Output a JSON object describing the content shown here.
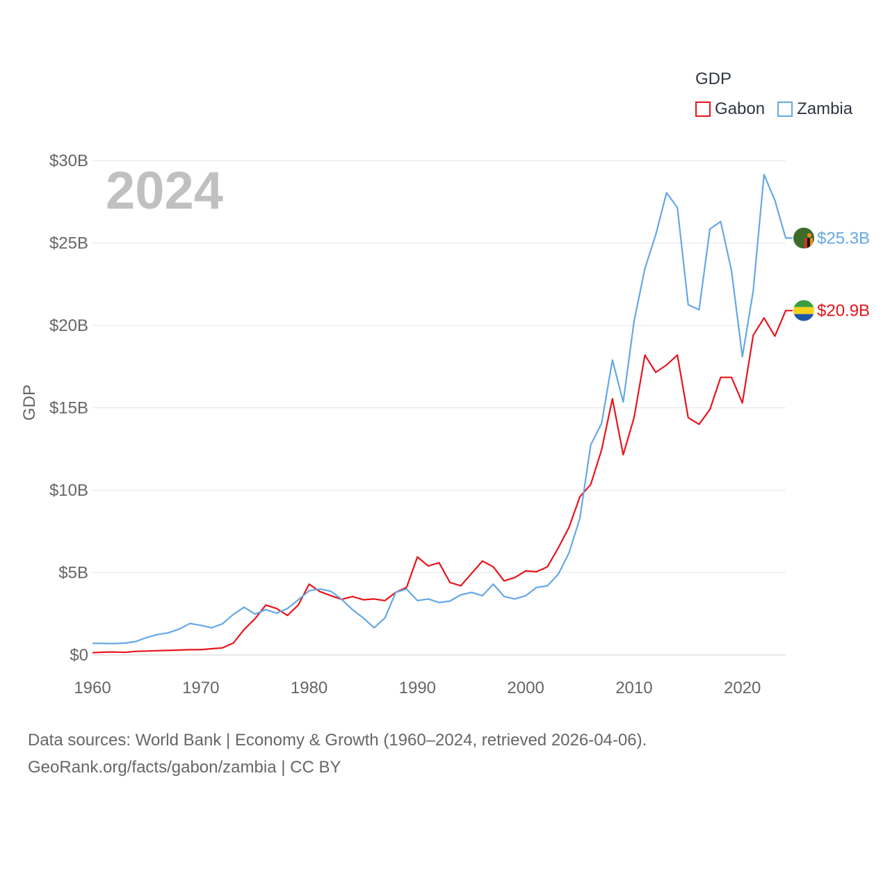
{
  "legend": {
    "title": "GDP",
    "items": [
      {
        "label": "Gabon",
        "color": "#e8141a"
      },
      {
        "label": "Zambia",
        "color": "#64a8e6"
      }
    ]
  },
  "footer": {
    "line1": "Data sources: World Bank | Economy & Growth (1960–2024, retrieved 2026-04-06).",
    "line2": "GeoRank.org/facts/gabon/zambia | CC BY"
  },
  "chart_data": {
    "type": "line",
    "ylabel": "GDP",
    "year_label": "2024",
    "xlim": [
      1960,
      2024
    ],
    "ylim": [
      0,
      30
    ],
    "x_ticks": [
      1960,
      1970,
      1980,
      1990,
      2000,
      2010,
      2020
    ],
    "y_ticks": [
      {
        "value": 0,
        "label": "$0"
      },
      {
        "value": 5,
        "label": "$5B"
      },
      {
        "value": 10,
        "label": "$10B"
      },
      {
        "value": 15,
        "label": "$15B"
      },
      {
        "value": 20,
        "label": "$20B"
      },
      {
        "value": 25,
        "label": "$25B"
      },
      {
        "value": 30,
        "label": "$30B"
      }
    ],
    "series": [
      {
        "name": "Gabon",
        "color": "#e8141a",
        "end_label": "$20.9B",
        "flag": "gabon-flag-icon",
        "x": [
          1960,
          1961,
          1962,
          1963,
          1964,
          1965,
          1966,
          1967,
          1968,
          1969,
          1970,
          1971,
          1972,
          1973,
          1974,
          1975,
          1976,
          1977,
          1978,
          1979,
          1980,
          1981,
          1982,
          1983,
          1984,
          1985,
          1986,
          1987,
          1988,
          1989,
          1990,
          1991,
          1992,
          1993,
          1994,
          1995,
          1996,
          1997,
          1998,
          1999,
          2000,
          2001,
          2002,
          2003,
          2004,
          2005,
          2006,
          2007,
          2008,
          2009,
          2010,
          2011,
          2012,
          2013,
          2014,
          2015,
          2016,
          2017,
          2018,
          2019,
          2020,
          2021,
          2022,
          2023,
          2024
        ],
        "values": [
          0.14,
          0.17,
          0.18,
          0.16,
          0.22,
          0.24,
          0.26,
          0.28,
          0.3,
          0.32,
          0.32,
          0.38,
          0.43,
          0.72,
          1.55,
          2.2,
          3.03,
          2.82,
          2.4,
          3.03,
          4.3,
          3.85,
          3.6,
          3.37,
          3.55,
          3.35,
          3.4,
          3.3,
          3.8,
          4.1,
          5.95,
          5.4,
          5.6,
          4.4,
          4.2,
          4.95,
          5.7,
          5.35,
          4.5,
          4.7,
          5.1,
          5.05,
          5.35,
          6.5,
          7.75,
          9.6,
          10.35,
          12.45,
          15.55,
          12.15,
          14.4,
          18.2,
          17.15,
          17.6,
          18.2,
          14.4,
          14.0,
          14.9,
          16.85,
          16.85,
          15.3,
          19.4,
          20.45,
          19.35,
          20.9
        ]
      },
      {
        "name": "Zambia",
        "color": "#64a8e6",
        "end_label": "$25.3B",
        "flag": "zambia-flag-icon",
        "x": [
          1960,
          1961,
          1962,
          1963,
          1964,
          1965,
          1966,
          1967,
          1968,
          1969,
          1970,
          1971,
          1972,
          1973,
          1974,
          1975,
          1976,
          1977,
          1978,
          1979,
          1980,
          1981,
          1982,
          1983,
          1984,
          1985,
          1986,
          1987,
          1988,
          1989,
          1990,
          1991,
          1992,
          1993,
          1994,
          1995,
          1996,
          1997,
          1998,
          1999,
          2000,
          2001,
          2002,
          2003,
          2004,
          2005,
          2006,
          2007,
          2008,
          2009,
          2010,
          2011,
          2012,
          2013,
          2014,
          2015,
          2016,
          2017,
          2018,
          2019,
          2020,
          2021,
          2022,
          2023,
          2024
        ],
        "values": [
          0.71,
          0.7,
          0.69,
          0.72,
          0.82,
          1.06,
          1.24,
          1.34,
          1.57,
          1.91,
          1.8,
          1.65,
          1.89,
          2.46,
          2.9,
          2.48,
          2.75,
          2.54,
          2.82,
          3.35,
          3.9,
          4.0,
          3.87,
          3.38,
          2.75,
          2.25,
          1.65,
          2.25,
          3.8,
          4.0,
          3.3,
          3.4,
          3.18,
          3.27,
          3.65,
          3.8,
          3.6,
          4.3,
          3.55,
          3.4,
          3.6,
          4.1,
          4.2,
          4.9,
          6.2,
          8.3,
          12.75,
          14.05,
          17.9,
          15.35,
          20.25,
          23.45,
          25.5,
          28.05,
          27.15,
          21.25,
          20.95,
          25.85,
          26.3,
          23.3,
          18.1,
          22.1,
          29.15,
          27.6,
          25.3
        ]
      }
    ]
  }
}
